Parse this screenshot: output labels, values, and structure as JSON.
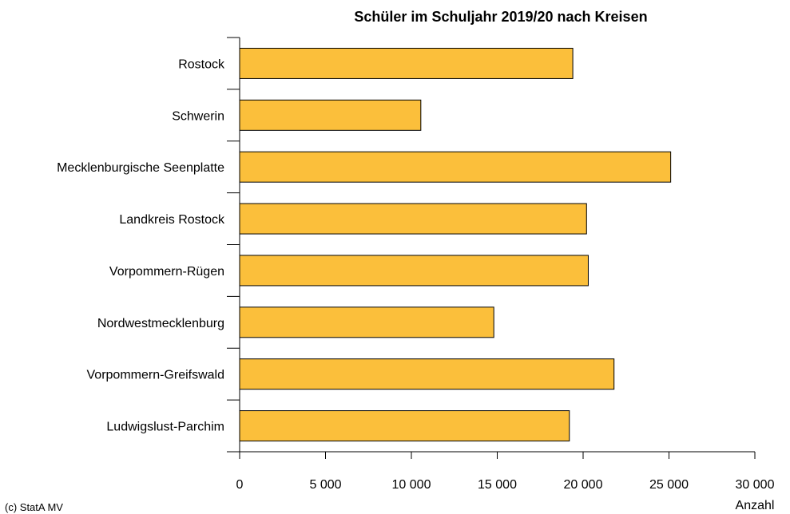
{
  "chart_data": {
    "type": "bar",
    "orientation": "horizontal",
    "title": "Schüler im Schuljahr 2019/20 nach Kreisen",
    "categories": [
      "Rostock",
      "Schwerin",
      "Mecklenburgische Seenplatte",
      "Landkreis Rostock",
      "Vorpommern-Rügen",
      "Nordwestmecklenburg",
      "Vorpommern-Greifswald",
      "Ludwigslust-Parchim"
    ],
    "values": [
      19400,
      10550,
      25100,
      20200,
      20300,
      14800,
      21800,
      19200
    ],
    "xlim": [
      0,
      30000
    ],
    "xticks": [
      0,
      5000,
      10000,
      15000,
      20000,
      25000,
      30000
    ],
    "xtick_labels": [
      "0",
      "5 000",
      "10 000",
      "15 000",
      "20 000",
      "25 000",
      "30 000"
    ],
    "xlabel": "Anzahl",
    "ylabel": "",
    "grid": false,
    "bar_color": "#FBBF3B",
    "bar_stroke": "#000000"
  },
  "source": "(c) StatA MV"
}
